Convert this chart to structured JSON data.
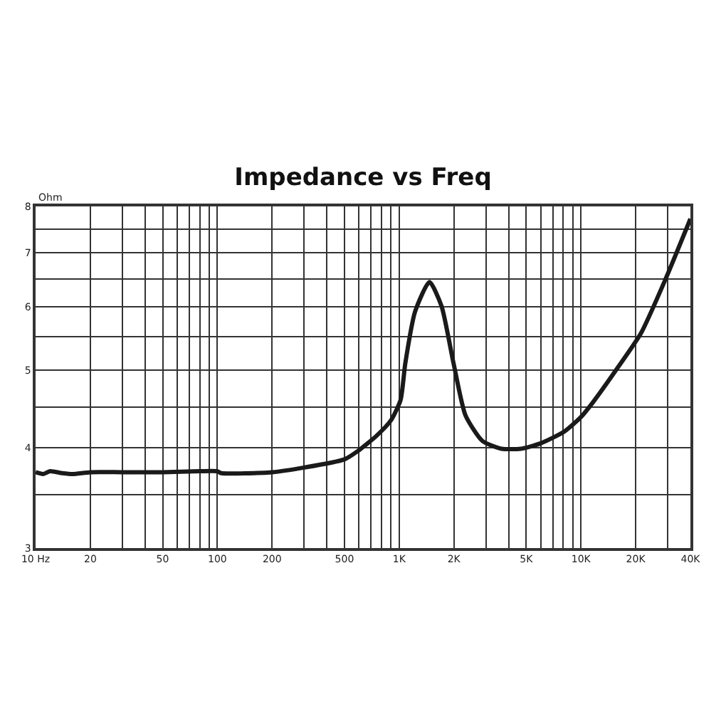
{
  "chart_data": {
    "type": "line",
    "title": "Impedance vs Freq",
    "ylabel": "Ohm",
    "log": "xy",
    "grid": true,
    "marker": "none",
    "line_style": "solid",
    "xlim": [
      10,
      40000
    ],
    "ylim": [
      3,
      8
    ],
    "xticks": [
      {
        "value": 10,
        "label": "10 Hz"
      },
      20,
      {
        "value": 30,
        "label": null
      },
      {
        "value": 40,
        "label": null
      },
      50,
      {
        "value": 60,
        "label": null
      },
      {
        "value": 70,
        "label": null
      },
      {
        "value": 80,
        "label": null
      },
      {
        "value": 90,
        "label": null
      },
      100,
      200,
      {
        "value": 300,
        "label": null
      },
      {
        "value": 400,
        "label": null
      },
      500,
      {
        "value": 600,
        "label": null
      },
      {
        "value": 700,
        "label": null
      },
      {
        "value": 800,
        "label": null
      },
      {
        "value": 900,
        "label": null
      },
      {
        "value": 1000,
        "label": "1K"
      },
      {
        "value": 2000,
        "label": "2K"
      },
      {
        "value": 3000,
        "label": null
      },
      {
        "value": 4000,
        "label": null
      },
      {
        "value": 5000,
        "label": "5K"
      },
      {
        "value": 6000,
        "label": null
      },
      {
        "value": 7000,
        "label": null
      },
      {
        "value": 8000,
        "label": null
      },
      {
        "value": 9000,
        "label": null
      },
      {
        "value": 10000,
        "label": "10K"
      },
      {
        "value": 20000,
        "label": "20K"
      },
      {
        "value": 30000,
        "label": null
      },
      {
        "value": 40000,
        "label": "40K"
      }
    ],
    "yticks": [
      3,
      {
        "value": 3.5,
        "label": null
      },
      4,
      {
        "value": 4.5,
        "label": null
      },
      5,
      {
        "value": 5.5,
        "label": null
      },
      6,
      {
        "value": 6.5,
        "label": null
      },
      7,
      {
        "value": 7.5,
        "label": null
      },
      8
    ],
    "x": [
      10,
      11,
      12,
      14,
      16,
      20,
      30,
      50,
      80,
      100,
      105,
      200,
      300,
      500,
      589,
      750,
      902,
      1018,
      1081,
      1222,
      1468,
      1710,
      1991,
      2317,
      2870,
      3656,
      4667,
      5960,
      8075,
      10000,
      11650,
      15780,
      21400,
      29000,
      40000
    ],
    "series": [
      {
        "color": "#1a1a1a",
        "values": [
          3.73,
          3.71,
          3.74,
          3.72,
          3.71,
          3.73,
          3.73,
          3.73,
          3.74,
          3.74,
          3.72,
          3.73,
          3.78,
          3.87,
          3.96,
          4.14,
          4.33,
          4.59,
          5.1,
          5.91,
          6.44,
          6.01,
          5.1,
          4.39,
          4.08,
          3.99,
          3.99,
          4.05,
          4.19,
          4.37,
          4.56,
          5.02,
          5.56,
          6.47,
          7.72
        ]
      }
    ]
  }
}
